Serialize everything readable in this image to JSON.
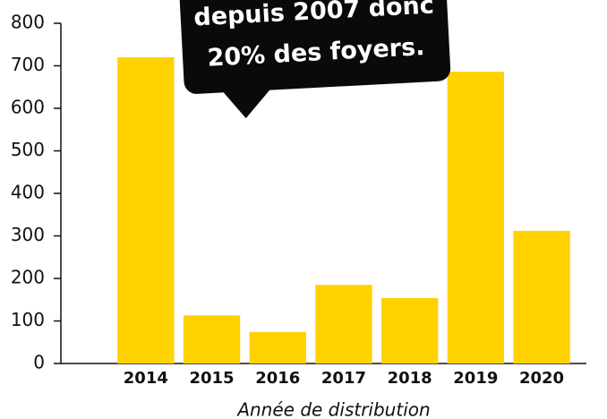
{
  "chart_data": {
    "type": "bar",
    "annotation": [
      "depuis 2007 donc",
      "20% des foyers."
    ],
    "x_label": "Année de distribution",
    "categories": [
      "2014",
      "2015",
      "2016",
      "2017",
      "2018",
      "2019",
      "2020"
    ],
    "values": [
      720,
      113,
      74,
      185,
      154,
      686,
      312
    ],
    "color": "#ffd200",
    "ylim": [
      0,
      800
    ],
    "yticks": [
      0,
      100,
      200,
      300,
      400,
      500,
      600,
      700,
      800
    ],
    "grid": false
  }
}
